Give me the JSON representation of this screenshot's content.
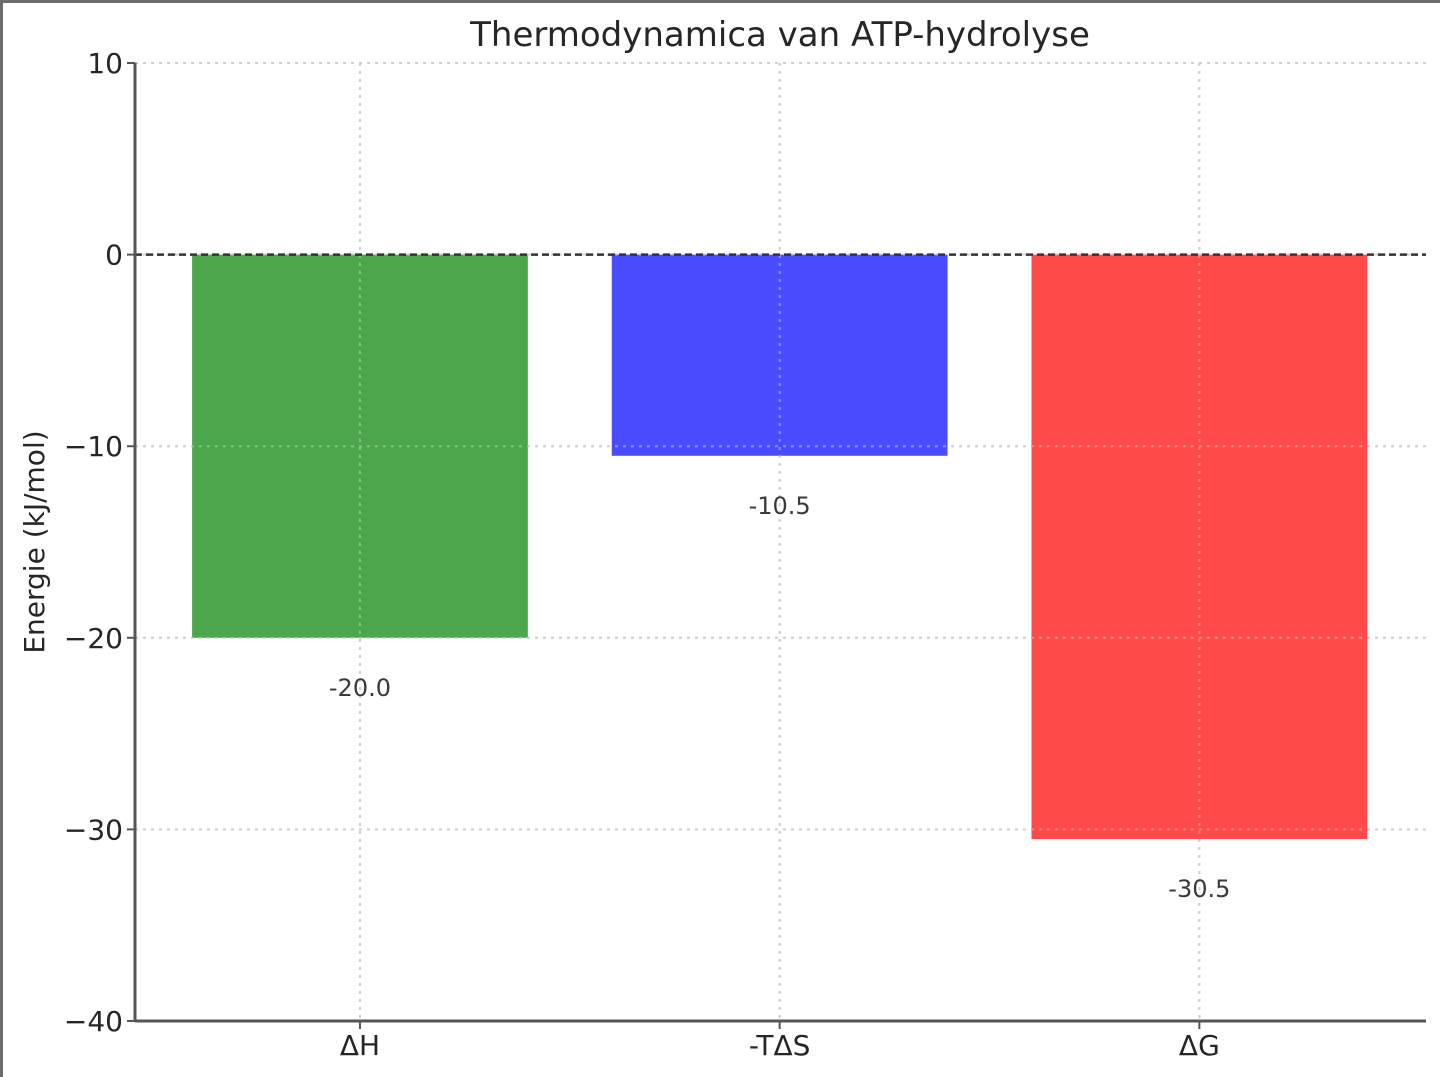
{
  "chart_data": {
    "type": "bar",
    "title": "Thermodynamica van ATP-hydrolyse",
    "xlabel": "",
    "ylabel": "Energie (kJ/mol)",
    "categories": [
      "ΔH",
      "-TΔS",
      "ΔG"
    ],
    "values": [
      -20.0,
      -10.5,
      -30.5
    ],
    "value_labels": [
      "-20.0",
      "-10.5",
      "-30.5"
    ],
    "colors": [
      "#4ca64c",
      "#4a4aff",
      "#ff4a4a"
    ],
    "ylim": [
      -40,
      10
    ],
    "yticks": [
      10,
      0,
      -10,
      -20,
      -30,
      -40
    ],
    "ytick_labels": [
      "10",
      "0",
      "−10",
      "−20",
      "−30",
      "−40"
    ],
    "grid": true,
    "grid_style": "dotted",
    "reference_line": {
      "y": 0,
      "style": "dashed",
      "color": "#333333"
    },
    "legend": null
  }
}
